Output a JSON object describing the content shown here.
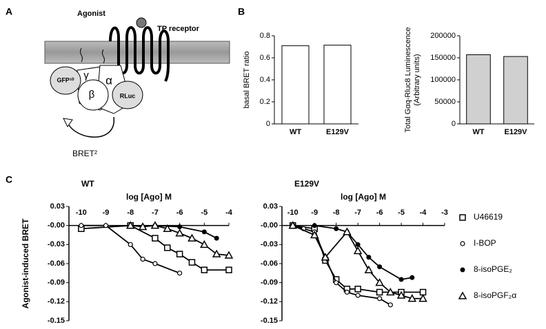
{
  "panels": [
    "A",
    "B",
    "C"
  ],
  "diagram": {
    "agonist": "Agonist",
    "receptor": "TP receptor",
    "gfp": "GFP¹⁰",
    "gamma": "γ",
    "beta": "β",
    "alpha": "α",
    "rluc": "RLuc",
    "bret": "BRET²"
  },
  "chart_data": [
    {
      "type": "bar",
      "ylabel": [
        "basal BRET  ratio"
      ],
      "categories": [
        "WT",
        "E129V"
      ],
      "values": [
        0.71,
        0.715
      ],
      "color": "#ffffff",
      "ylim": [
        0,
        0.8
      ],
      "yticks": [
        0,
        0.2,
        0.4,
        0.6,
        0.8
      ]
    },
    {
      "type": "bar",
      "ylabel": [
        "Total Gαq-Rluc8 Luminescence",
        "(Arbitrary units)"
      ],
      "categories": [
        "WT",
        "E129V"
      ],
      "values": [
        157000,
        153000
      ],
      "color": "#d0d0d0",
      "ylim": [
        0,
        200000
      ],
      "yticks": [
        0,
        50000,
        100000,
        150000,
        200000
      ]
    },
    {
      "type": "line",
      "title": "WT",
      "xlabel": "log [Ago] M",
      "ylabel": "Agonist-induced BRET",
      "xlim": [
        -10.5,
        -4
      ],
      "xticks": [
        -10,
        -9,
        -8,
        -7,
        -6,
        -5,
        -4
      ],
      "ylim": [
        -0.15,
        0.03
      ],
      "yticks": [
        0.03,
        {
          "value": 0,
          "label": "-0.00"
        },
        -0.03,
        -0.06,
        -0.09,
        -0.12,
        -0.15
      ],
      "series": [
        {
          "marker": "square",
          "color": "#000000",
          "x": [
            -10,
            -8,
            -7,
            -6.5,
            -6,
            -5.5,
            -5,
            -4
          ],
          "values": [
            -0.005,
            0,
            -0.02,
            -0.035,
            -0.045,
            -0.058,
            -0.07,
            -0.07
          ]
        },
        {
          "marker": "circle-open",
          "color": "#000000",
          "x": [
            -10,
            -9,
            -8,
            -7.5,
            -7,
            -6
          ],
          "values": [
            0,
            0,
            -0.03,
            -0.053,
            -0.06,
            -0.075
          ]
        },
        {
          "marker": "circle",
          "color": "#000000",
          "x": [
            -7,
            -6,
            -5,
            -4.5
          ],
          "values": [
            0,
            -0.002,
            -0.01,
            -0.02
          ]
        },
        {
          "marker": "triangle",
          "color": "#000000",
          "x": [
            -8,
            -7.5,
            -7,
            -6.5,
            -6,
            -5.5,
            -5,
            -4.5,
            -4
          ],
          "values": [
            0,
            -0.002,
            0,
            -0.005,
            -0.012,
            -0.02,
            -0.03,
            -0.045,
            -0.047
          ]
        }
      ]
    },
    {
      "type": "line",
      "title": "E129V",
      "xlabel": "log [Ago] M",
      "xlim": [
        -10.5,
        -3
      ],
      "xticks": [
        -10,
        -9,
        -8,
        -7,
        -6,
        -5,
        -4,
        -3
      ],
      "ylim": [
        -0.15,
        0.03
      ],
      "yticks": [
        0.03,
        {
          "value": 0,
          "label": "-0.00"
        },
        -0.03,
        -0.06,
        -0.09,
        -0.12,
        -0.15
      ],
      "series": [
        {
          "name": "U46619",
          "marker": "square",
          "color": "#000000",
          "x": [
            -10,
            -9,
            -8.5,
            -8,
            -7.5,
            -7,
            -6,
            -5,
            -4
          ],
          "values": [
            0,
            -0.005,
            -0.055,
            -0.085,
            -0.1,
            -0.1,
            -0.105,
            -0.105,
            -0.105
          ]
        },
        {
          "name": "I-BOP",
          "marker": "circle-open",
          "color": "#000000",
          "x": [
            -10,
            -9.5,
            -9,
            -8.5,
            -8,
            -7.5,
            -7,
            -6,
            -5.5
          ],
          "values": [
            0,
            -0.005,
            -0.01,
            -0.05,
            -0.09,
            -0.105,
            -0.11,
            -0.115,
            -0.125
          ]
        },
        {
          "name": "8-isoPGE₂",
          "marker": "circle",
          "color": "#000000",
          "x": [
            -9,
            -8,
            -7.5,
            -7,
            -6.5,
            -6,
            -5,
            -4.5
          ],
          "values": [
            0,
            -0.005,
            -0.01,
            -0.03,
            -0.05,
            -0.065,
            -0.085,
            -0.082
          ]
        },
        {
          "name": "8-isoPGF₂α",
          "marker": "triangle",
          "color": "#000000",
          "x": [
            -10,
            -9,
            -8.5,
            -7.5,
            -7,
            -6.5,
            -6,
            -5.5,
            -5,
            -4.5,
            -4
          ],
          "values": [
            0,
            -0.015,
            -0.05,
            -0.01,
            -0.04,
            -0.07,
            -0.09,
            -0.105,
            -0.11,
            -0.115,
            -0.115
          ]
        }
      ]
    }
  ]
}
